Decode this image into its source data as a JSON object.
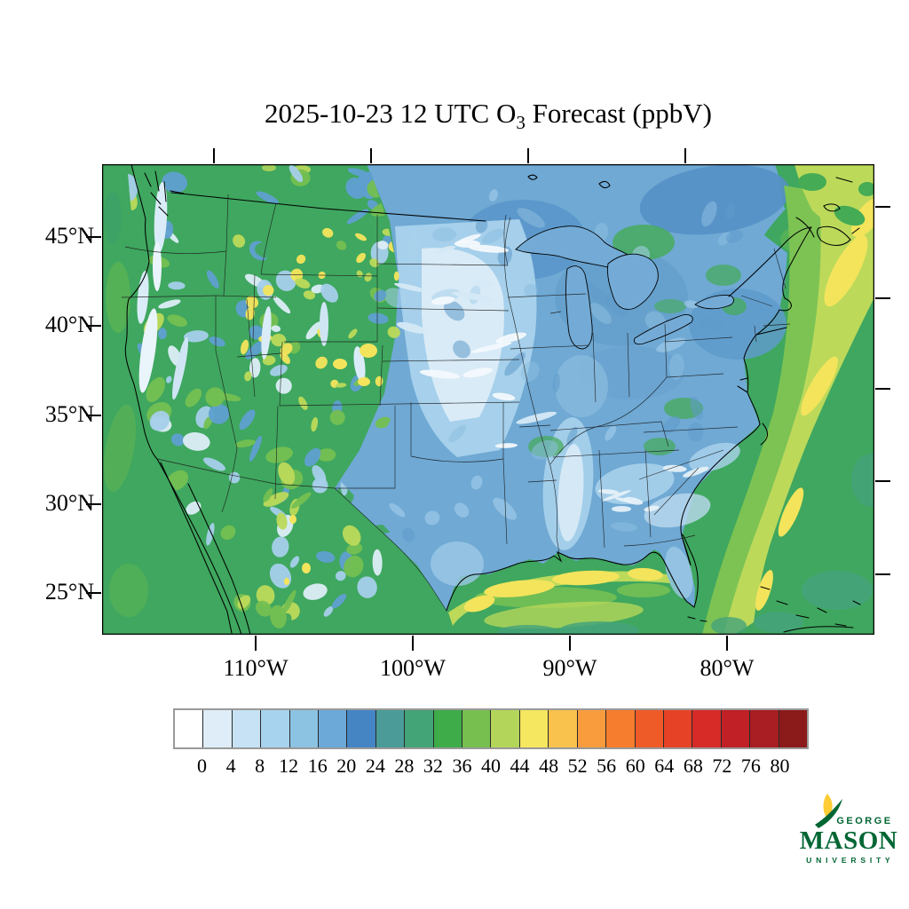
{
  "title": {
    "prefix": "2025-10-23 12 UTC O",
    "subscript": "3",
    "suffix": " Forecast (ppbV)"
  },
  "axes": {
    "lat_ticks": [
      "45°N",
      "40°N",
      "35°N",
      "30°N",
      "25°N"
    ],
    "lon_ticks": [
      "110°W",
      "100°W",
      "90°W",
      "80°W"
    ]
  },
  "colorbar": {
    "tick_labels": [
      "0",
      "4",
      "8",
      "12",
      "16",
      "20",
      "24",
      "28",
      "32",
      "36",
      "40",
      "44",
      "48",
      "52",
      "56",
      "60",
      "64",
      "68",
      "72",
      "76",
      "80"
    ],
    "cell_colors": [
      "#FFFFFF",
      "#DEEDF8",
      "#C6E2F4",
      "#A7D3EE",
      "#8CC3E2",
      "#6CA9D8",
      "#4585C4",
      "#4B9C98",
      "#43A477",
      "#3EAC49",
      "#77C04F",
      "#B3D65A",
      "#F5E75F",
      "#F8C24C",
      "#F89C3E",
      "#F67D2E",
      "#EE5B28",
      "#E64326",
      "#D62B27",
      "#C02026",
      "#A81E22",
      "#8B1A1A"
    ]
  },
  "palette": {
    "ocean_green": "#3FA75F",
    "land_green": "#45AB55",
    "teal_green": "#45A37B",
    "light_green": "#7CC353",
    "yellow_green": "#BCD95A",
    "yellow": "#F3E45C",
    "blue_mid": "#6FA9D4",
    "blue_deep": "#5590C6",
    "blue_light": "#A9D2EC",
    "blue_pale": "#D9EBF7",
    "near_white": "#F3F9FD"
  },
  "logo": {
    "top": "GEORGE",
    "name": "MASON",
    "bottom": "U N I V E R S I T Y",
    "green": "#006633",
    "gold": "#FFCC33"
  },
  "chart_data": {
    "type": "heatmap",
    "title": "2025-10-23 12 UTC O3 Forecast (ppbV)",
    "variable": "Surface ozone (O3) forecast",
    "units": "ppbV",
    "region": "Continental United States and surrounding ocean",
    "x_tick_labels": [
      "110°W",
      "100°W",
      "90°W",
      "80°W"
    ],
    "y_tick_labels": [
      "45°N",
      "40°N",
      "35°N",
      "30°N",
      "25°N"
    ],
    "colorbar_levels": [
      0,
      4,
      8,
      12,
      16,
      20,
      24,
      28,
      32,
      36,
      40,
      44,
      48,
      52,
      56,
      60,
      64,
      68,
      72,
      76,
      80
    ],
    "colorbar_colors": [
      "#FFFFFF",
      "#DEEDF8",
      "#C6E2F4",
      "#A7D3EE",
      "#8CC3E2",
      "#6CA9D8",
      "#4585C4",
      "#4B9C98",
      "#43A477",
      "#3EAC49",
      "#77C04F",
      "#B3D65A",
      "#F5E75F",
      "#F8C24C",
      "#F89C3E",
      "#F67D2E",
      "#EE5B28",
      "#E64326",
      "#D62B27",
      "#C02026",
      "#A81E22",
      "#8B1A1A"
    ],
    "legend_position": "bottom",
    "notes": "Low ozone (white/blue, 0-24 ppbV) over the Plains, Midwest, Mississippi valley and Southeast; moderate (green, 28-40) over the West and oceans; elevated (yellow-green/yellow, 40-48) over the Rockies hotspots, Gulf of Mexico coastal band and a SW-NE Atlantic band."
  }
}
